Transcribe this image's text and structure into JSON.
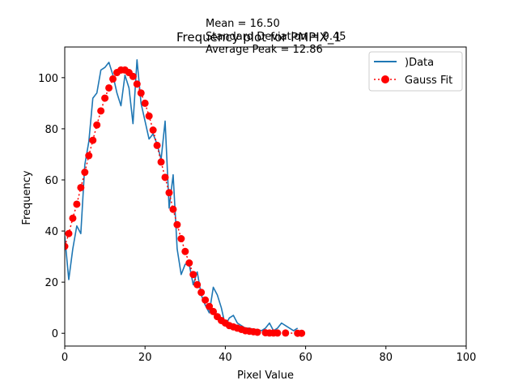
{
  "chart_data": {
    "type": "line",
    "title": "Frequency plot for PMPIX_1",
    "xlabel": "Pixel Value",
    "ylabel": "Frequency",
    "xlim": [
      0,
      100
    ],
    "ylim": [
      -5,
      112
    ],
    "xticks": [
      0,
      20,
      40,
      60,
      80,
      100
    ],
    "yticks": [
      0,
      20,
      40,
      60,
      80,
      100
    ],
    "grid": false,
    "legend_position": "top-right",
    "annotations": [
      "Mean = 16.50",
      "Standard Deviation = 9.45",
      "Average Peak = 12.86"
    ],
    "series": [
      {
        "name": ")Data",
        "style": "line",
        "color": "#1f77b4",
        "x": [
          0,
          1,
          2,
          3,
          4,
          5,
          6,
          7,
          8,
          9,
          10,
          11,
          12,
          13,
          14,
          15,
          16,
          17,
          18,
          19,
          20,
          21,
          22,
          23,
          24,
          25,
          26,
          27,
          28,
          29,
          30,
          31,
          32,
          33,
          34,
          35,
          36,
          37,
          38,
          39,
          40,
          41,
          42,
          43,
          44,
          45,
          46,
          47,
          48,
          49,
          50,
          51,
          52,
          53,
          54,
          55,
          56,
          57,
          58
        ],
        "y": [
          38,
          21,
          33,
          42,
          39,
          66,
          75,
          92,
          94,
          103,
          104,
          106,
          101,
          94,
          89,
          101,
          96,
          82,
          107,
          90,
          83,
          76,
          78,
          74,
          68,
          83,
          49,
          62,
          33,
          23,
          27,
          27,
          19,
          24,
          15,
          11,
          8,
          18,
          15,
          10,
          3,
          6,
          7,
          4,
          3,
          2,
          2,
          1.5,
          1.5,
          1,
          2,
          4,
          1,
          2,
          4,
          3,
          2,
          1,
          2
        ]
      },
      {
        "name": "Gauss Fit",
        "style": "dotted-markers",
        "color": "#ff0000",
        "x": [
          0,
          1,
          2,
          3,
          4,
          5,
          6,
          7,
          8,
          9,
          10,
          11,
          12,
          13,
          14,
          15,
          16,
          17,
          18,
          19,
          20,
          21,
          22,
          23,
          24,
          25,
          26,
          27,
          28,
          29,
          30,
          31,
          32,
          33,
          34,
          35,
          36,
          37,
          38,
          39,
          40,
          41,
          42,
          43,
          44,
          45,
          46,
          47,
          48,
          50,
          51,
          52,
          53,
          55,
          58,
          59
        ],
        "y": [
          34,
          39,
          45,
          50.5,
          57,
          63,
          69.5,
          75.5,
          81.5,
          87,
          92,
          96,
          99.5,
          102,
          103,
          103,
          102,
          100.5,
          97.5,
          94,
          90,
          85,
          79.5,
          73.5,
          67,
          61,
          55,
          48.5,
          42.5,
          37,
          32,
          27.5,
          23,
          19,
          16,
          13,
          10.5,
          8.5,
          6.5,
          5,
          4,
          3,
          2.5,
          2,
          1.5,
          1,
          0.8,
          0.6,
          0.4,
          0.2,
          0.1,
          0.1,
          0.1,
          0.1,
          0,
          0
        ]
      }
    ]
  }
}
